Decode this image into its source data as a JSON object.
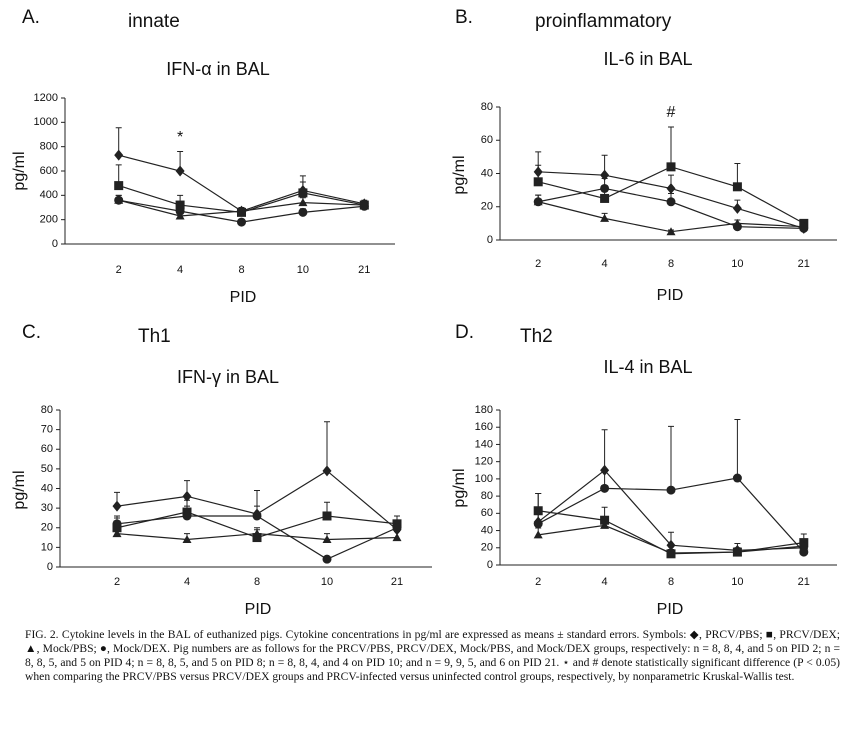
{
  "chart_data": [
    {
      "type": "line",
      "panel": "A.",
      "subtitle": "innate",
      "title": "IFN-α in BAL",
      "ylabel": "pg/ml",
      "xlabel": "PID",
      "categories": [
        "2",
        "4",
        "8",
        "10",
        "21"
      ],
      "ylim": [
        0,
        1200
      ],
      "yticks": [
        0,
        200,
        400,
        600,
        800,
        1000,
        1200
      ],
      "annotations": [
        {
          "text": "*",
          "x": "4"
        }
      ],
      "series": [
        {
          "marker": "diamond",
          "color": "#222222",
          "values": [
            730,
            600,
            270,
            440,
            330
          ],
          "errors": [
            225,
            160,
            30,
            120,
            30
          ]
        },
        {
          "marker": "square",
          "color": "#222222",
          "values": [
            480,
            320,
            260,
            420,
            320
          ],
          "errors": [
            170,
            80,
            25,
            90,
            25
          ]
        },
        {
          "marker": "triangle",
          "color": "#222222",
          "values": [
            360,
            230,
            270,
            340,
            320
          ],
          "errors": [
            40,
            30,
            25,
            40,
            20
          ]
        },
        {
          "marker": "circle",
          "color": "#222222",
          "values": [
            360,
            270,
            180,
            260,
            310
          ],
          "errors": [
            40,
            40,
            20,
            30,
            20
          ]
        }
      ]
    },
    {
      "type": "line",
      "panel": "B.",
      "subtitle": "proinflammatory",
      "title": "IL-6 in BAL",
      "ylabel": "pg/ml",
      "xlabel": "PID",
      "categories": [
        "2",
        "4",
        "8",
        "10",
        "21"
      ],
      "ylim": [
        0,
        80
      ],
      "yticks": [
        0,
        20,
        40,
        60,
        80
      ],
      "annotations": [
        {
          "text": "#",
          "x": "8"
        }
      ],
      "series": [
        {
          "marker": "diamond",
          "color": "#222222",
          "values": [
            41,
            39,
            31,
            19,
            7
          ],
          "errors": [
            12,
            12,
            8,
            5,
            2
          ]
        },
        {
          "marker": "square",
          "color": "#222222",
          "values": [
            35,
            25,
            44,
            32,
            10
          ],
          "errors": [
            10,
            7,
            24,
            14,
            2
          ]
        },
        {
          "marker": "triangle",
          "color": "#222222",
          "values": [
            23,
            13,
            5,
            10,
            8
          ],
          "errors": [
            4,
            3,
            1,
            2,
            2
          ]
        },
        {
          "marker": "circle",
          "color": "#222222",
          "values": [
            23,
            31,
            23,
            8,
            7
          ],
          "errors": [
            4,
            6,
            5,
            2,
            2
          ]
        }
      ]
    },
    {
      "type": "line",
      "panel": "C.",
      "subtitle": "Th1",
      "title": "IFN-γ in BAL",
      "ylabel": "pg/ml",
      "xlabel": "PID",
      "categories": [
        "2",
        "4",
        "8",
        "10",
        "21"
      ],
      "ylim": [
        0,
        80
      ],
      "yticks": [
        0,
        10,
        20,
        30,
        40,
        50,
        60,
        70,
        80
      ],
      "annotations": [],
      "series": [
        {
          "marker": "diamond",
          "color": "#222222",
          "values": [
            31,
            36,
            27,
            49,
            19
          ],
          "errors": [
            7,
            8,
            12,
            25,
            4
          ]
        },
        {
          "marker": "square",
          "color": "#222222",
          "values": [
            20,
            28,
            15,
            26,
            22
          ],
          "errors": [
            5,
            6,
            4,
            7,
            4
          ]
        },
        {
          "marker": "triangle",
          "color": "#222222",
          "values": [
            17,
            14,
            17,
            14,
            15
          ],
          "errors": [
            3,
            3,
            3,
            3,
            3
          ]
        },
        {
          "marker": "circle",
          "color": "#222222",
          "values": [
            22,
            26,
            26,
            4,
            20
          ],
          "errors": [
            4,
            5,
            5,
            1,
            3
          ]
        }
      ]
    },
    {
      "type": "line",
      "panel": "D.",
      "subtitle": "Th2",
      "title": "IL-4 in BAL",
      "ylabel": "pg/ml",
      "xlabel": "PID",
      "categories": [
        "2",
        "4",
        "8",
        "10",
        "21"
      ],
      "ylim": [
        0,
        180
      ],
      "yticks": [
        0,
        20,
        40,
        60,
        80,
        100,
        120,
        140,
        160,
        180
      ],
      "annotations": [],
      "series": [
        {
          "marker": "diamond",
          "color": "#222222",
          "values": [
            50,
            110,
            23,
            17,
            20
          ],
          "errors": [
            33,
            47,
            15,
            8,
            8
          ]
        },
        {
          "marker": "square",
          "color": "#222222",
          "values": [
            63,
            52,
            13,
            15,
            26
          ],
          "errors": [
            20,
            15,
            5,
            5,
            10
          ]
        },
        {
          "marker": "triangle",
          "color": "#222222",
          "values": [
            35,
            46,
            14,
            15,
            22
          ],
          "errors": [
            8,
            10,
            4,
            4,
            6
          ]
        },
        {
          "marker": "circle",
          "color": "#222222",
          "values": [
            48,
            89,
            87,
            101,
            15
          ],
          "errors": [
            12,
            20,
            74,
            68,
            5
          ]
        }
      ]
    }
  ],
  "caption": "FIG. 2. Cytokine levels in the BAL of euthanized pigs. Cytokine concentrations in pg/ml are expressed as means ± standard errors. Symbols: ◆, PRCV/PBS; ■, PRCV/DEX; ▲, Mock/PBS; ●, Mock/DEX. Pig numbers are as follows for the PRCV/PBS, PRCV/DEX, Mock/PBS, and Mock/DEX groups, respectively: n = 8, 8, 4, and 5 on PID 2; n = 8, 8, 5, and 5 on PID 4; n = 8, 8, 5, and 5 on PID 8; n = 8, 8, 4, and 4 on PID 10; and n = 9, 9, 5, and 6 on PID 21. ⋆ and # denote statistically significant difference (P < 0.05) when comparing the PRCV/PBS versus PRCV/DEX groups and PRCV-infected versus uninfected control groups, respectively, by nonparametric Kruskal-Wallis test."
}
